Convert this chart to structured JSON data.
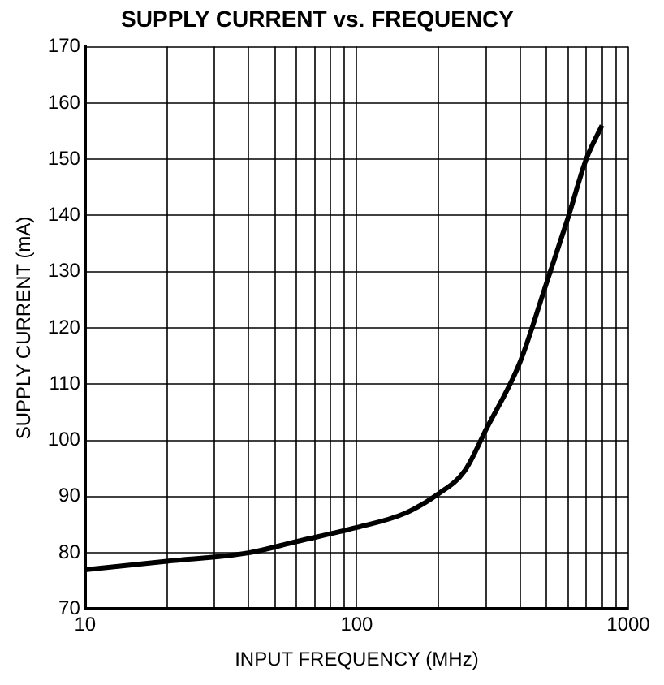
{
  "chart_data": {
    "type": "line",
    "title": "SUPPLY CURRENT vs. FREQUENCY",
    "xlabel": "INPUT FREQUENCY (MHz)",
    "ylabel": "SUPPLY CURRENT (mA)",
    "log": "x",
    "grid": true,
    "marker": "none",
    "line_style": "solid",
    "xlim": [
      10,
      1000
    ],
    "ylim": [
      70,
      170
    ],
    "xticks": [
      10,
      {
        "value": 20,
        "label": null
      },
      {
        "value": 30,
        "label": null
      },
      {
        "value": 40,
        "label": null
      },
      {
        "value": 50,
        "label": null
      },
      {
        "value": 60,
        "label": null
      },
      {
        "value": 70,
        "label": null
      },
      {
        "value": 80,
        "label": null
      },
      {
        "value": 90,
        "label": null
      },
      100,
      {
        "value": 200,
        "label": null
      },
      {
        "value": 300,
        "label": null
      },
      {
        "value": 400,
        "label": null
      },
      {
        "value": 500,
        "label": null
      },
      {
        "value": 600,
        "label": null
      },
      {
        "value": 700,
        "label": null
      },
      {
        "value": 800,
        "label": null
      },
      {
        "value": 900,
        "label": null
      },
      1000
    ],
    "yticks": [
      70,
      80,
      90,
      100,
      110,
      120,
      130,
      140,
      150,
      160,
      170
    ],
    "series": [
      {
        "color": "#000000",
        "x": [
          10,
          20,
          40,
          60,
          100,
          150,
          200,
          250,
          300,
          400,
          500,
          600,
          700,
          800
        ],
        "values": [
          77,
          78.5,
          80,
          82,
          84.5,
          87,
          90.5,
          94.6,
          102,
          114,
          128,
          139.6,
          150,
          156
        ]
      }
    ]
  }
}
